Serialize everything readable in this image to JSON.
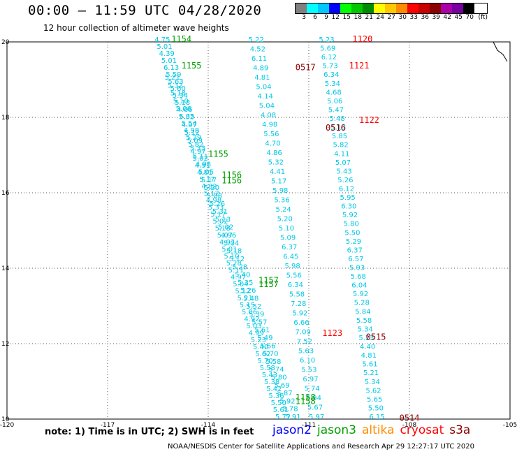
{
  "header": {
    "title": "00:00 – 11:59 UTC 04/28/2020",
    "subtitle": "12 hour collection of altimeter wave heights"
  },
  "legend": {
    "label": "(ft)",
    "bins": [
      {
        "value": "3",
        "color": "#808080"
      },
      {
        "value": "6",
        "color": "#00ffff"
      },
      {
        "value": "9",
        "color": "#00c8ff"
      },
      {
        "value": "12",
        "color": "#0000ff"
      },
      {
        "value": "15",
        "color": "#00ff00"
      },
      {
        "value": "18",
        "color": "#00c800"
      },
      {
        "value": "21",
        "color": "#008c00"
      },
      {
        "value": "24",
        "color": "#ffff00"
      },
      {
        "value": "27",
        "color": "#ffc800"
      },
      {
        "value": "30",
        "color": "#ff8c00"
      },
      {
        "value": "33",
        "color": "#ff0000"
      },
      {
        "value": "36",
        "color": "#c80000"
      },
      {
        "value": "39",
        "color": "#8c0000"
      },
      {
        "value": "42",
        "color": "#aa00aa"
      },
      {
        "value": "45",
        "color": "#7800a0"
      },
      {
        "value": "70",
        "color": "#000000"
      }
    ]
  },
  "axes": {
    "lon_ticks": [
      "-120",
      "-117",
      "-114",
      "-111",
      "-108",
      "-105"
    ],
    "lon_values": [
      -120,
      -117,
      -114,
      -111,
      -108,
      -105
    ],
    "lat_ticks": [
      "20",
      "18",
      "16",
      "14",
      "12",
      "10"
    ],
    "lat_values": [
      20,
      18,
      16,
      14,
      12,
      10
    ]
  },
  "footer": {
    "note": "note: 1) Time is in UTC; 2) SWH is in feet",
    "satellites": [
      {
        "name": "jason2",
        "color": "#0000ff"
      },
      {
        "name": "jason3",
        "color": "#00a000"
      },
      {
        "name": "altika",
        "color": "#ff8c00"
      },
      {
        "name": "cryosat",
        "color": "#ff0000"
      },
      {
        "name": "s3a",
        "color": "#8c0000"
      }
    ],
    "credit": "NOAA/NESDIS Center for Satellite Applications and Research   Apr 29 12:27:17 UTC 2020"
  },
  "tracks": [
    {
      "lon_start": -115.6,
      "lat_start": 20.0,
      "lon_end": -112.0,
      "lat_end": 10.0,
      "values": [
        "4.75",
        "5.01",
        "4.39",
        "5.01",
        "6.13",
        "5.59",
        "5.63",
        "5.60",
        "5.34",
        "5.18",
        "4.66",
        "5.35",
        "5.54",
        "4.98",
        "5.29",
        "5.82",
        "4.97",
        "5.02",
        "4.91",
        "4.81",
        "5.17",
        "4.82",
        "5.12",
        "4.98",
        "5.33",
        "5.17",
        "5.02",
        "5.18",
        "5.07",
        "4.97",
        "5.01",
        "5.10",
        "5.28",
        "5.11",
        "4.97",
        "5.04",
        "5.12",
        "5.21",
        "5.15",
        "5.06",
        "4.92",
        "5.03",
        "4.99",
        "5.23",
        "5.40",
        "5.62",
        "5.70",
        "5.58",
        "5.43",
        "5.38",
        "5.42",
        "5.36",
        "5.50",
        "5.61",
        "5.72"
      ]
    },
    {
      "lon_start": -115.3,
      "lat_start": 19.0,
      "lon_end": -111.7,
      "lat_end": 10.0,
      "values": [
        "5.21",
        "5.32",
        "5.18",
        "5.10",
        "5.06",
        "5.02",
        "4.97",
        "5.12",
        "5.09",
        "5.33",
        "5.11",
        "4.98",
        "5.05",
        "5.17",
        "5.20",
        "5.08",
        "5.26",
        "5.31",
        "5.13",
        "5.02",
        "4.96",
        "5.04",
        "5.18",
        "5.12",
        "5.28",
        "5.40",
        "5.35",
        "5.26",
        "5.48",
        "5.52",
        "5.39",
        "5.57",
        "5.61",
        "5.49",
        "5.66",
        "5.70",
        "5.58",
        "5.74",
        "5.80",
        "5.69",
        "5.87",
        "5.92",
        "5.78",
        "5.91"
      ]
    },
    {
      "lon_start": -112.8,
      "lat_start": 20.0,
      "lon_end": -111.0,
      "lat_end": 10.0,
      "values": [
        "5.22",
        "4.52",
        "6.11",
        "4.89",
        "4.81",
        "5.04",
        "4.14",
        "5.04",
        "4.08",
        "4.98",
        "5.56",
        "4.70",
        "4.86",
        "5.32",
        "4.41",
        "5.17",
        "5.98",
        "5.36",
        "5.24",
        "5.20",
        "5.10",
        "5.09",
        "6.37",
        "6.45",
        "5.98",
        "5.56",
        "6.34",
        "5.58",
        "7.28",
        "5.92",
        "6.66",
        "7.09",
        "7.52",
        "5.63",
        "6.10",
        "5.53",
        "6.97",
        "5.74",
        "5.94",
        "5.67",
        "5.97"
      ]
    },
    {
      "lon_start": -110.7,
      "lat_start": 20.0,
      "lon_end": -109.2,
      "lat_end": 10.0,
      "values": [
        "5.23",
        "5.69",
        "6.12",
        "5.73",
        "6.34",
        "5.34",
        "4.68",
        "5.06",
        "5.47",
        "5.48",
        "5.13",
        "5.85",
        "5.82",
        "4.11",
        "5.07",
        "5.43",
        "5.26",
        "6.12",
        "5.95",
        "6.30",
        "5.92",
        "5.80",
        "5.50",
        "5.29",
        "6.37",
        "6.57",
        "5.93",
        "5.68",
        "6.04",
        "5.92",
        "5.28",
        "5.84",
        "5.58",
        "5.34",
        "5.23",
        "4.40",
        "4.81",
        "5.61",
        "5.21",
        "5.34",
        "5.62",
        "5.65",
        "5.50",
        "6.15"
      ]
    }
  ],
  "time_labels": [
    {
      "text": "1154",
      "color": "#00a000",
      "lon": -115.1,
      "lat": 20.0
    },
    {
      "text": "1155",
      "color": "#00a000",
      "lon": -114.8,
      "lat": 19.3
    },
    {
      "text": "1155",
      "color": "#00a000",
      "lon": -114.0,
      "lat": 16.95
    },
    {
      "text": "1156",
      "color": "#00a000",
      "lon": -113.6,
      "lat": 16.4
    },
    {
      "text": "1156",
      "color": "#00a000",
      "lon": -113.6,
      "lat": 16.25
    },
    {
      "text": "1157",
      "color": "#00a000",
      "lon": -112.5,
      "lat": 13.6
    },
    {
      "text": "1157",
      "color": "#00a000",
      "lon": -112.5,
      "lat": 13.5
    },
    {
      "text": "1158",
      "color": "#00a000",
      "lon": -111.4,
      "lat": 10.5
    },
    {
      "text": "1158",
      "color": "#00a000",
      "lon": -111.4,
      "lat": 10.4
    },
    {
      "text": "1120",
      "color": "#ff0000",
      "lon": -109.7,
      "lat": 20.0
    },
    {
      "text": "1121",
      "color": "#ff0000",
      "lon": -109.8,
      "lat": 19.3
    },
    {
      "text": "1122",
      "color": "#ff0000",
      "lon": -109.5,
      "lat": 17.85
    },
    {
      "text": "1123",
      "color": "#ff0000",
      "lon": -110.6,
      "lat": 12.2
    },
    {
      "text": "0517",
      "color": "#8c0000",
      "lon": -111.4,
      "lat": 19.25
    },
    {
      "text": "0516",
      "color": "#8c0000",
      "lon": -110.5,
      "lat": 17.65
    },
    {
      "text": "0515",
      "color": "#8c0000",
      "lon": -109.3,
      "lat": 12.1
    },
    {
      "text": "0514",
      "color": "#8c0000",
      "lon": -108.3,
      "lat": 9.95
    }
  ]
}
